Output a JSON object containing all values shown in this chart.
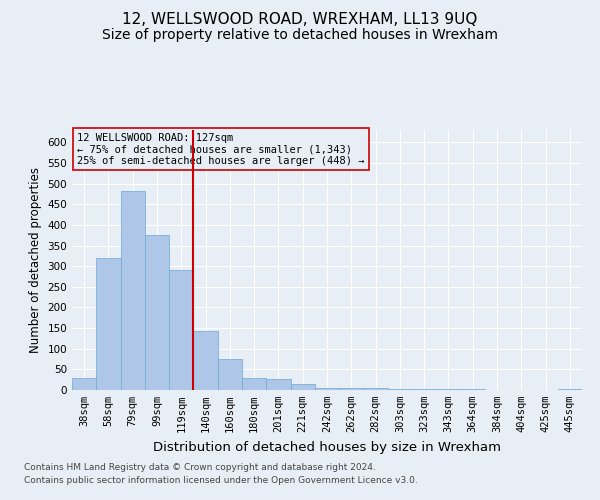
{
  "title": "12, WELLSWOOD ROAD, WREXHAM, LL13 9UQ",
  "subtitle": "Size of property relative to detached houses in Wrexham",
  "xlabel": "Distribution of detached houses by size in Wrexham",
  "ylabel": "Number of detached properties",
  "categories": [
    "38sqm",
    "58sqm",
    "79sqm",
    "99sqm",
    "119sqm",
    "140sqm",
    "160sqm",
    "180sqm",
    "201sqm",
    "221sqm",
    "242sqm",
    "262sqm",
    "282sqm",
    "303sqm",
    "323sqm",
    "343sqm",
    "364sqm",
    "384sqm",
    "404sqm",
    "425sqm",
    "445sqm"
  ],
  "values": [
    30,
    320,
    483,
    375,
    290,
    143,
    75,
    30,
    27,
    15,
    6,
    5,
    5,
    3,
    2,
    2,
    2,
    1,
    1,
    1,
    3
  ],
  "bar_color": "#aec6e8",
  "bar_edgecolor": "#6aaad4",
  "vline_x": 4.5,
  "vline_color": "#cc0000",
  "annotation_box_text": "12 WELLSWOOD ROAD: 127sqm\n← 75% of detached houses are smaller (1,343)\n25% of semi-detached houses are larger (448) →",
  "annotation_box_color": "#cc0000",
  "ylim": [
    0,
    630
  ],
  "yticks": [
    0,
    50,
    100,
    150,
    200,
    250,
    300,
    350,
    400,
    450,
    500,
    550,
    600
  ],
  "background_color": "#e8eef5",
  "grid_color": "#ffffff",
  "footer_line1": "Contains HM Land Registry data © Crown copyright and database right 2024.",
  "footer_line2": "Contains public sector information licensed under the Open Government Licence v3.0.",
  "title_fontsize": 11,
  "subtitle_fontsize": 10,
  "xlabel_fontsize": 9.5,
  "ylabel_fontsize": 8.5,
  "tick_fontsize": 7.5,
  "annotation_fontsize": 7.5,
  "footer_fontsize": 6.5
}
